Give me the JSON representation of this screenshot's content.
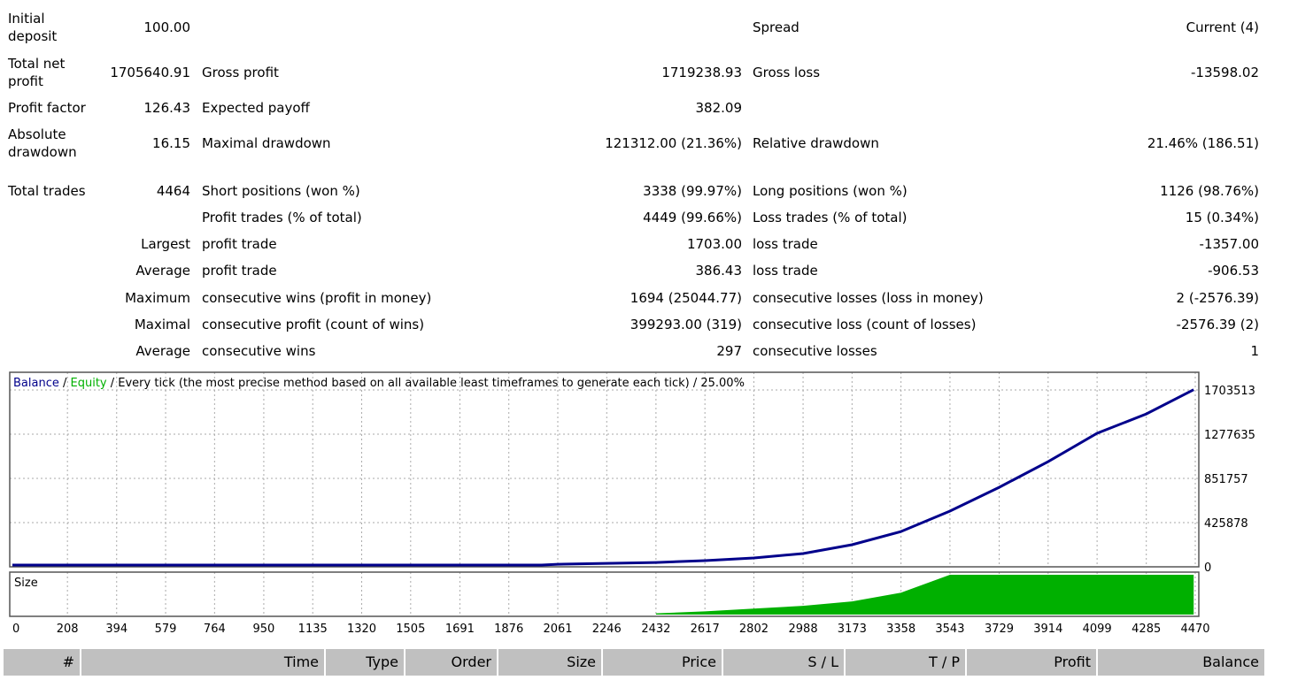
{
  "stats": {
    "initial_deposit": {
      "label": "Initial deposit",
      "value": "100.00"
    },
    "spread": {
      "label": "Spread",
      "value": "Current (4)"
    },
    "total_net_profit": {
      "label": "Total net profit",
      "value": "1705640.91"
    },
    "gross_profit": {
      "label": "Gross profit",
      "value": "1719238.93"
    },
    "gross_loss": {
      "label": "Gross loss",
      "value": "-13598.02"
    },
    "profit_factor": {
      "label": "Profit factor",
      "value": "126.43"
    },
    "expected_payoff": {
      "label": "Expected payoff",
      "value": "382.09"
    },
    "absolute_drawdown": {
      "label": "Absolute drawdown",
      "value": "16.15"
    },
    "maximal_drawdown": {
      "label": "Maximal drawdown",
      "value": "121312.00 (21.36%)"
    },
    "relative_drawdown": {
      "label": "Relative drawdown",
      "value": "21.46% (186.51)"
    },
    "total_trades": {
      "label": "Total trades",
      "value": "4464"
    },
    "short_positions": {
      "label": "Short positions (won %)",
      "value": "3338 (99.97%)"
    },
    "long_positions": {
      "label": "Long positions (won %)",
      "value": "1126 (98.76%)"
    },
    "profit_trades": {
      "label": "Profit trades (% of total)",
      "value": "4449 (99.66%)"
    },
    "loss_trades": {
      "label": "Loss trades (% of total)",
      "value": "15 (0.34%)"
    },
    "largest": {
      "prefix": "Largest",
      "profit_label": "profit trade",
      "profit_value": "1703.00",
      "loss_label": "loss trade",
      "loss_value": "-1357.00"
    },
    "average": {
      "prefix": "Average",
      "profit_label": "profit trade",
      "profit_value": "386.43",
      "loss_label": "loss trade",
      "loss_value": "-906.53"
    },
    "maximum": {
      "prefix": "Maximum",
      "wins_label": "consecutive wins (profit in money)",
      "wins_value": "1694 (25044.77)",
      "losses_label": "consecutive losses (loss in money)",
      "losses_value": "2 (-2576.39)"
    },
    "maximal": {
      "prefix": "Maximal",
      "wins_label": "consecutive profit (count of wins)",
      "wins_value": "399293.00 (319)",
      "losses_label": "consecutive loss (count of losses)",
      "losses_value": "-2576.39 (2)"
    },
    "average_consec": {
      "prefix": "Average",
      "wins_label": "consecutive wins",
      "wins_value": "297",
      "losses_label": "consecutive losses",
      "losses_value": "1"
    }
  },
  "chart_data": {
    "type": "line",
    "legend": {
      "balance": "Balance",
      "equity": "Equity",
      "sep": " / ",
      "rest": " / Every tick (the most precise method based on all available least timeframes to generate each tick) / 25.00%"
    },
    "colors": {
      "balance": "#00008b",
      "equity": "#00b000",
      "size": "#00b000"
    },
    "y_ticks": [
      "1703513",
      "1277635",
      "851757",
      "425878",
      "0"
    ],
    "y_tick_values": [
      1703513,
      1277635,
      851757,
      425878,
      0
    ],
    "x_ticks": [
      0,
      208,
      394,
      579,
      764,
      950,
      1135,
      1320,
      1505,
      1691,
      1876,
      2061,
      2246,
      2432,
      2617,
      2802,
      2988,
      3173,
      3358,
      3543,
      3729,
      3914,
      4099,
      4285,
      4470
    ],
    "xlim": [
      0,
      4490
    ],
    "ylim": [
      0,
      2200000
    ],
    "balance": [
      [
        0,
        100
      ],
      [
        2000,
        3000
      ],
      [
        2061,
        25000
      ],
      [
        2432,
        42000
      ],
      [
        2617,
        60000
      ],
      [
        2802,
        85000
      ],
      [
        2988,
        128000
      ],
      [
        3173,
        213000
      ],
      [
        3358,
        340000
      ],
      [
        3543,
        537000
      ],
      [
        3729,
        766000
      ],
      [
        3914,
        1013000
      ],
      [
        4099,
        1286000
      ],
      [
        4285,
        1473000
      ],
      [
        4464,
        1705741
      ]
    ],
    "size_label": "Size",
    "size_relative": [
      [
        2432,
        0.03
      ],
      [
        2617,
        0.08
      ],
      [
        2802,
        0.15
      ],
      [
        2988,
        0.22
      ],
      [
        3173,
        0.33
      ],
      [
        3358,
        0.55
      ],
      [
        3543,
        1
      ],
      [
        4464,
        1
      ]
    ]
  },
  "table_header": [
    "#",
    "Time",
    "Type",
    "Order",
    "Size",
    "Price",
    "S / L",
    "T / P",
    "Profit",
    "Balance"
  ]
}
